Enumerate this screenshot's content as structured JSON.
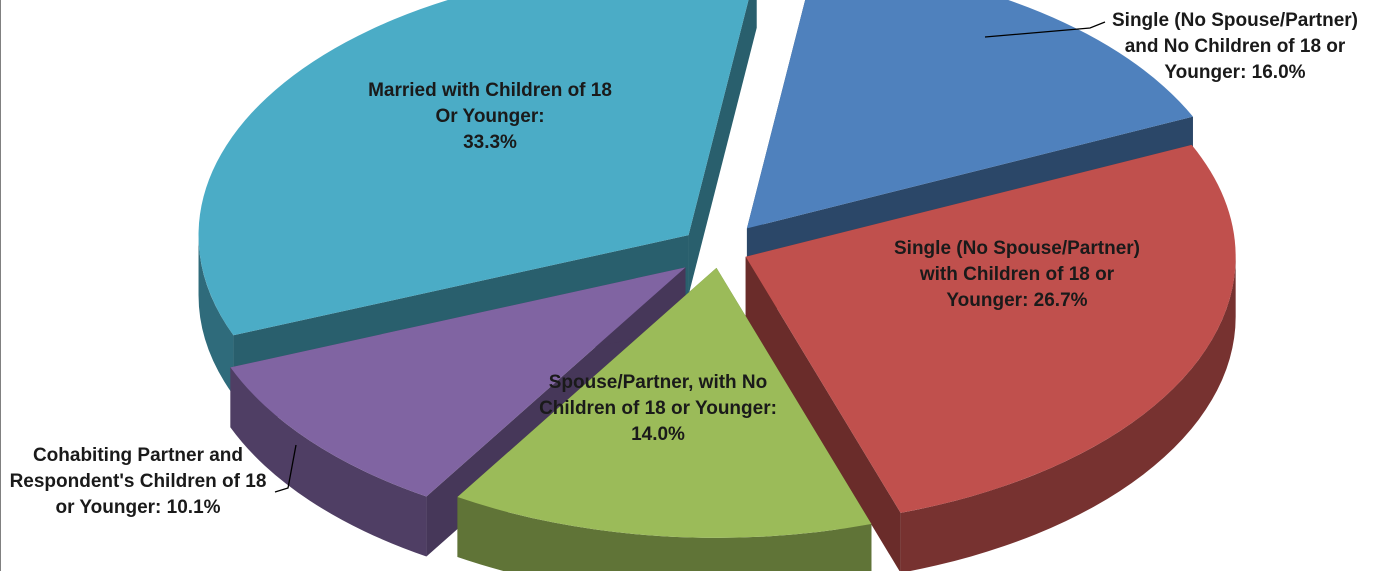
{
  "chart_data": {
    "type": "pie",
    "three_d": true,
    "exploded": true,
    "slices": [
      {
        "label_lines": [
          "Single (No Spouse/Partner)",
          "and No Children of 18 or",
          "Younger: 16.0%"
        ],
        "value": 16.0,
        "color": "#4f81bd",
        "label_position": "outside-top-right",
        "leader_line": true
      },
      {
        "label_lines": [
          "Single (No Spouse/Partner)",
          "with Children of 18 or",
          "Younger: 26.7%"
        ],
        "value": 26.7,
        "color": "#c0504d",
        "label_position": "inside",
        "leader_line": false
      },
      {
        "label_lines": [
          "Spouse/Partner, with No",
          "Children of 18 or Younger:",
          "14.0%"
        ],
        "value": 14.0,
        "color": "#9bbb59",
        "label_position": "inside",
        "leader_line": false
      },
      {
        "label_lines": [
          "Cohabiting Partner and",
          "Respondent's Children of 18",
          "or Younger: 10.1%"
        ],
        "value": 10.1,
        "color": "#8064a2",
        "label_position": "outside-bottom-left",
        "leader_line": true
      },
      {
        "label_lines": [
          "Married with Children of 18",
          "Or Younger:",
          "33.3%"
        ],
        "value": 33.3,
        "color": "#4bacc6",
        "label_position": "inside",
        "leader_line": false
      }
    ]
  }
}
